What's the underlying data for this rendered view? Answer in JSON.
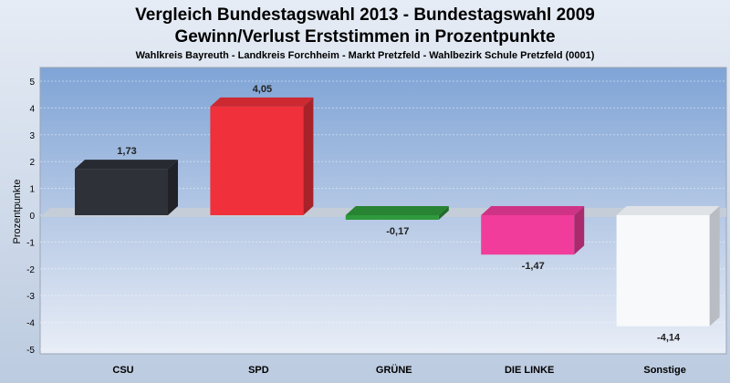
{
  "chart_data": {
    "type": "bar",
    "title": "Vergleich Bundestagswahl 2013 - Bundestagswahl 2009",
    "subtitle": "Gewinn/Verlust Erststimmen in Prozentpunkte",
    "subtitle2": "Wahlkreis Bayreuth - Landkreis Forchheim  - Markt Pretzfeld - Wahlbezirk Schule Pretzfeld (0001)",
    "xlabel": "",
    "ylabel": "Prozentpunkte",
    "ylim": [
      -5,
      5
    ],
    "yticks": [
      "5",
      "4",
      "3",
      "2",
      "1",
      "0",
      "-1",
      "-2",
      "-3",
      "-4",
      "-5"
    ],
    "categories": [
      "CSU",
      "SPD",
      "GRÜNE",
      "DIE LINKE",
      "Sonstige"
    ],
    "values": [
      1.73,
      4.05,
      -0.17,
      -1.47,
      -4.14
    ],
    "value_labels": [
      "1,73",
      "4,05",
      "-0,17",
      "-1,47",
      "-4,14"
    ],
    "colors": [
      "#2e3138",
      "#f0303a",
      "#2f9a3c",
      "#f23c9c",
      "#f8f9fb"
    ],
    "grid": true,
    "legend": "none"
  }
}
